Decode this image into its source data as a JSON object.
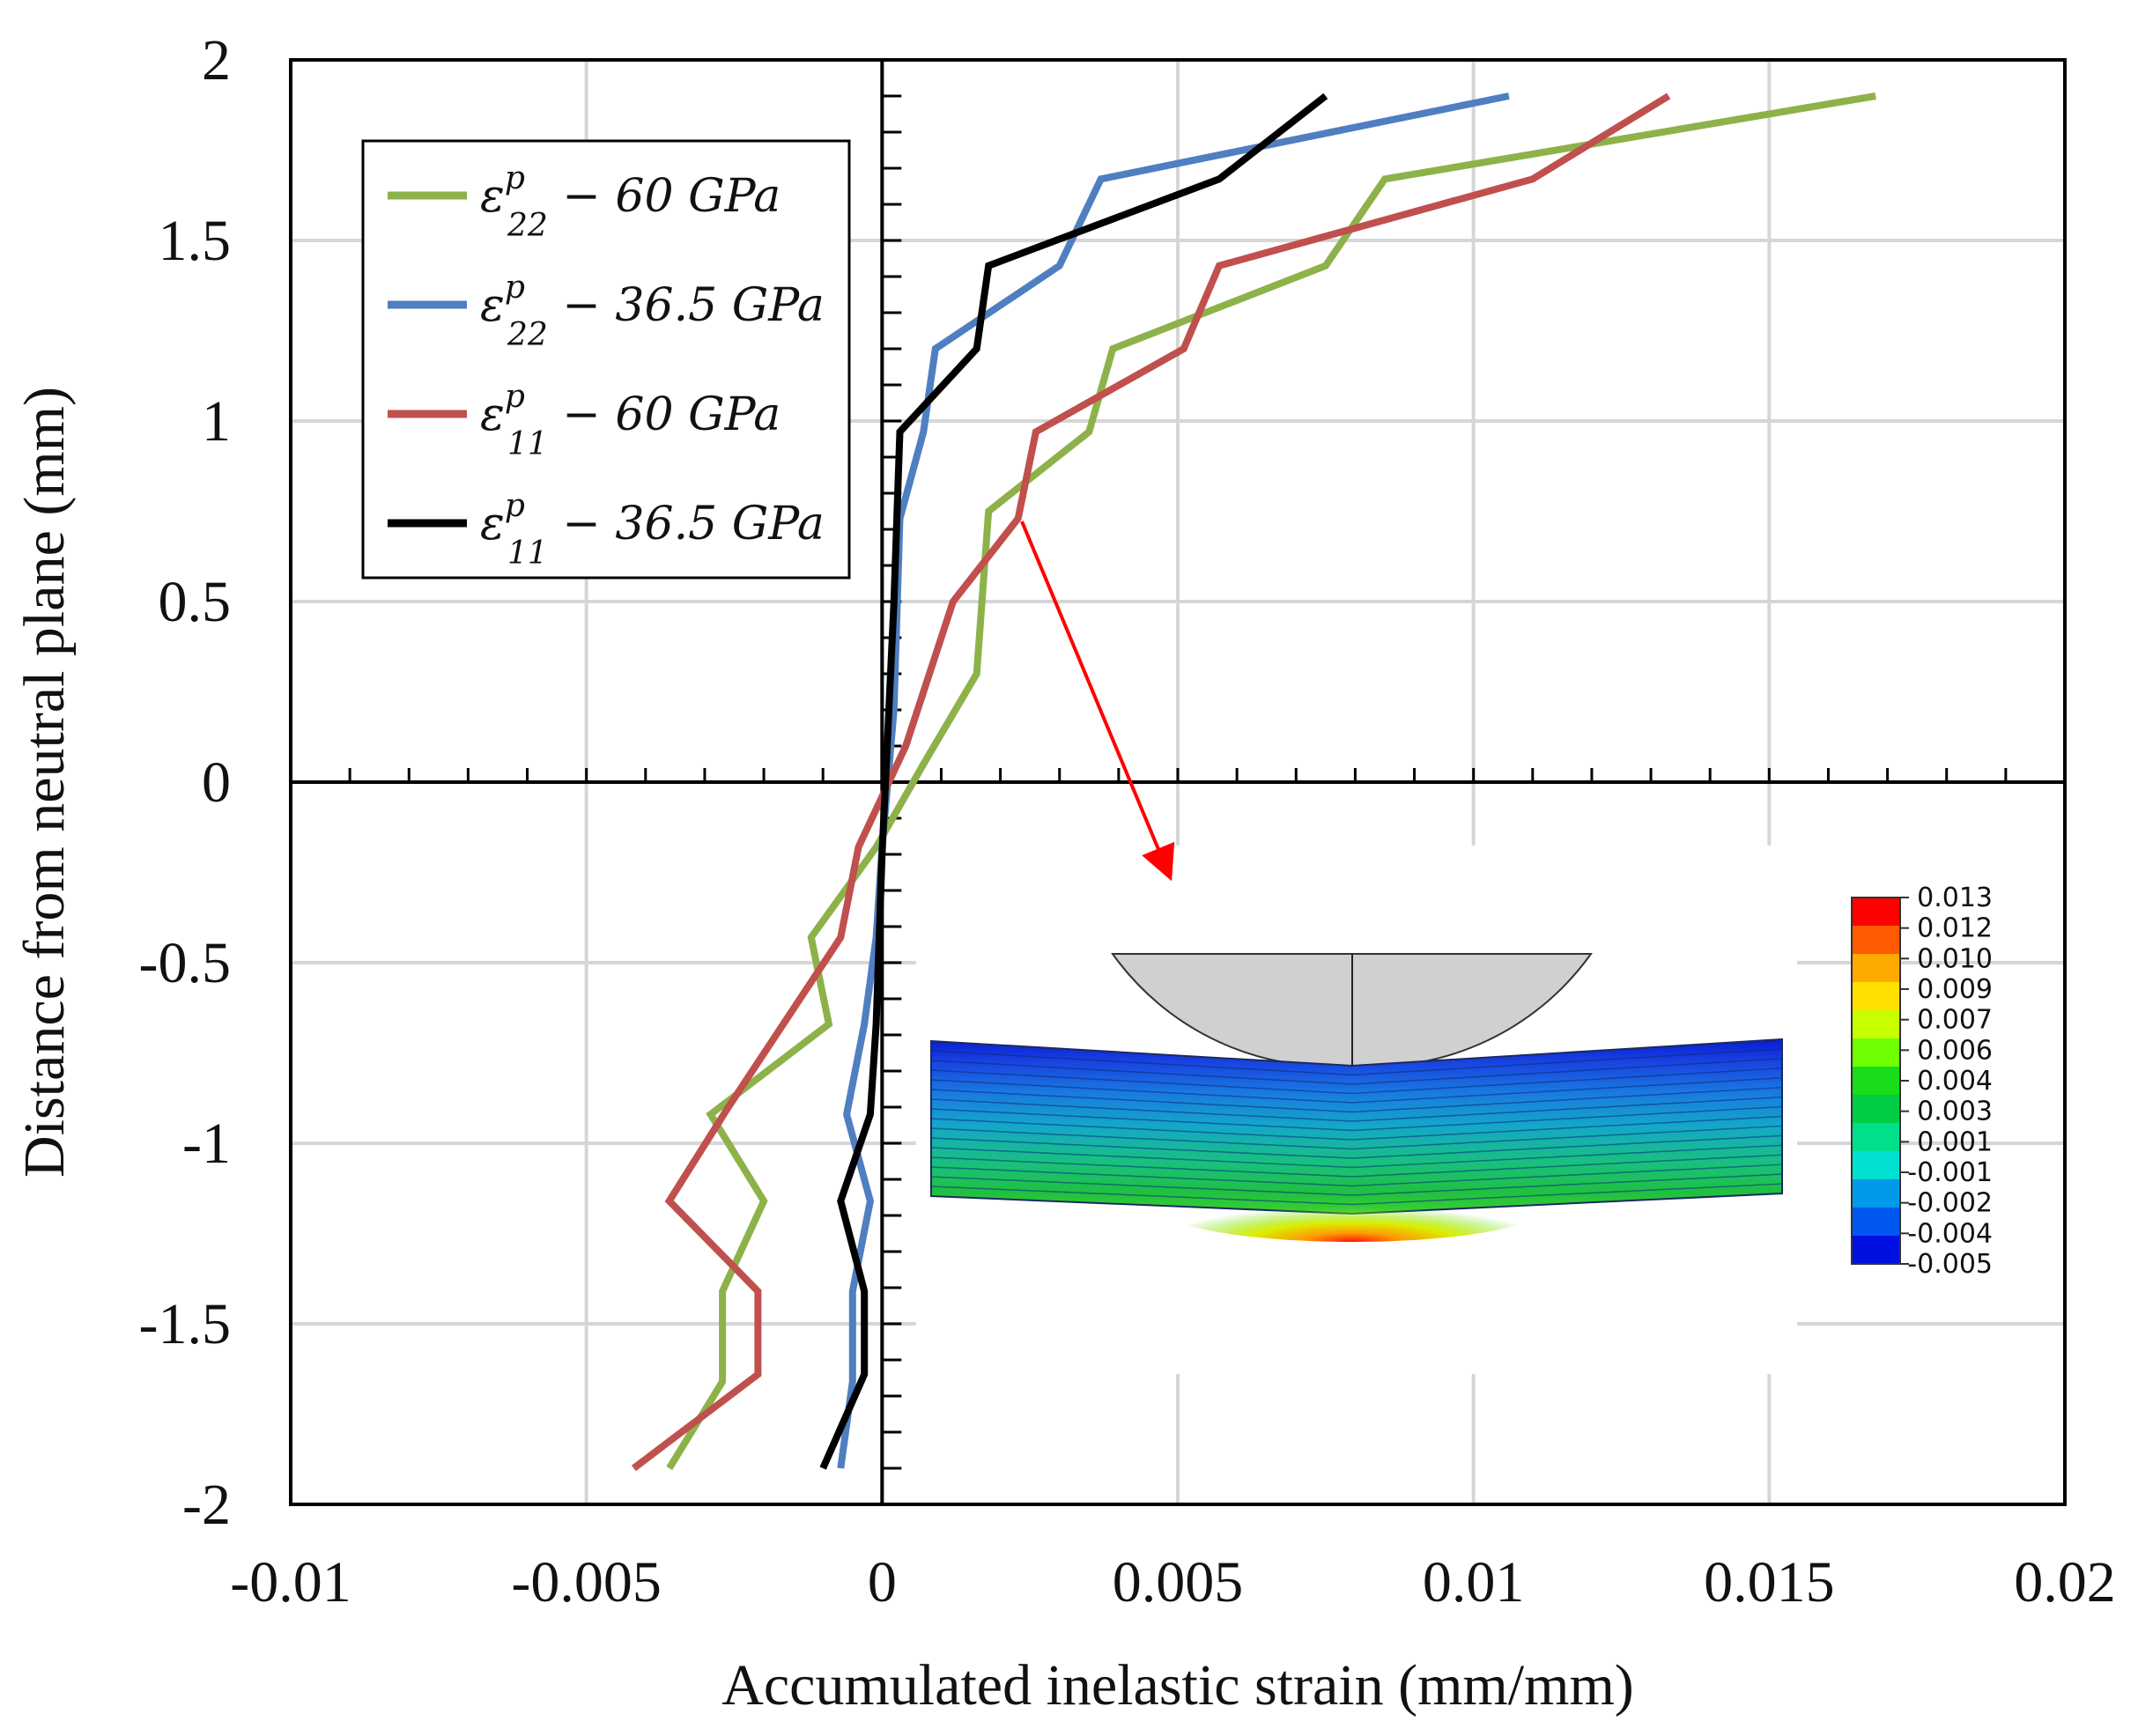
{
  "chart_data": {
    "type": "line",
    "xlabel": "Accumulated inelastic strain (mm/mm)",
    "ylabel": "Distance  from neutral plane (mm)",
    "xlim": [
      -0.01,
      0.02
    ],
    "ylim": [
      -2,
      2
    ],
    "x_ticks": [
      "-0.01",
      "-0.005",
      "0",
      "0.005",
      "0.01",
      "0.015",
      "0.02"
    ],
    "y_ticks": [
      "2",
      "1.5",
      "1",
      "0.5",
      "0",
      "-0.5",
      "-1",
      "-1.5",
      "-2"
    ],
    "grid": true,
    "legend_position": "top-left",
    "series": [
      {
        "name": "ε22p − 60 GPa",
        "symbol": "ε",
        "sub": "22",
        "sup": "p",
        "rest": " − 60 GPa",
        "color": "#8db24a",
        "points": [
          [
            -0.0036,
            -1.9
          ],
          [
            -0.0027,
            -1.66
          ],
          [
            -0.0027,
            -1.41
          ],
          [
            -0.002,
            -1.16
          ],
          [
            -0.0029,
            -0.92
          ],
          [
            -0.0009,
            -0.67
          ],
          [
            -0.0012,
            -0.43
          ],
          [
            -0.0001,
            -0.18
          ],
          [
            0.0007,
            0.05
          ],
          [
            0.0016,
            0.3
          ],
          [
            0.0018,
            0.75
          ],
          [
            0.0035,
            0.97
          ],
          [
            0.0039,
            1.2
          ],
          [
            0.0075,
            1.43
          ],
          [
            0.0085,
            1.67
          ],
          [
            0.0168,
            1.9
          ]
        ]
      },
      {
        "name": "ε22p − 36.5 GPa",
        "symbol": "ε",
        "sub": "22",
        "sup": "p",
        "rest": " − 36.5 GPa",
        "color": "#4f7fc0",
        "points": [
          [
            -0.0007,
            -1.9
          ],
          [
            -0.0005,
            -1.66
          ],
          [
            -0.0005,
            -1.41
          ],
          [
            -0.0002,
            -1.16
          ],
          [
            -0.0006,
            -0.92
          ],
          [
            -0.0003,
            -0.67
          ],
          [
            -0.0001,
            -0.43
          ],
          [
            0.0,
            -0.18
          ],
          [
            0.0002,
            0.2
          ],
          [
            0.0003,
            0.73
          ],
          [
            0.0007,
            0.97
          ],
          [
            0.0009,
            1.2
          ],
          [
            0.003,
            1.43
          ],
          [
            0.0037,
            1.67
          ],
          [
            0.0106,
            1.9
          ]
        ]
      },
      {
        "name": "ε11p − 60 GPa",
        "symbol": "ε",
        "sub": "11",
        "sup": "p",
        "rest": " − 60 GPa",
        "color": "#c0504d",
        "points": [
          [
            -0.0042,
            -1.9
          ],
          [
            -0.0021,
            -1.64
          ],
          [
            -0.0021,
            -1.41
          ],
          [
            -0.0036,
            -1.16
          ],
          [
            -0.0026,
            -0.9
          ],
          [
            -0.0007,
            -0.43
          ],
          [
            -0.0004,
            -0.18
          ],
          [
            0.0004,
            0.1
          ],
          [
            0.0012,
            0.5
          ],
          [
            0.0023,
            0.73
          ],
          [
            0.0026,
            0.97
          ],
          [
            0.0051,
            1.2
          ],
          [
            0.0057,
            1.43
          ],
          [
            0.011,
            1.67
          ],
          [
            0.0133,
            1.9
          ]
        ]
      },
      {
        "name": "ε11p − 36.5 GPa",
        "symbol": "ε",
        "sub": "11",
        "sup": "p",
        "rest": " − 36.5 GPa",
        "color": "#000000",
        "points": [
          [
            -0.001,
            -1.9
          ],
          [
            -0.0003,
            -1.64
          ],
          [
            -0.0003,
            -1.41
          ],
          [
            -0.0007,
            -1.16
          ],
          [
            -0.0002,
            -0.92
          ],
          [
            -0.0001,
            -0.67
          ],
          [
            0.0,
            -0.2
          ],
          [
            0.0002,
            0.5
          ],
          [
            0.0003,
            0.97
          ],
          [
            0.0016,
            1.2
          ],
          [
            0.0018,
            1.43
          ],
          [
            0.0057,
            1.67
          ],
          [
            0.0075,
            1.9
          ]
        ]
      }
    ]
  },
  "inset": {
    "colorbar_labels": [
      "0.013",
      "0.012",
      "0.010",
      "0.009",
      "0.007",
      "0.006",
      "0.004",
      "0.003",
      "0.001",
      "-0.001",
      "-0.002",
      "-0.004",
      "-0.005"
    ],
    "colorbar_colors": [
      "#ff0000",
      "#ff5a00",
      "#ffaa00",
      "#ffe000",
      "#c8ff00",
      "#6eff00",
      "#1adc1a",
      "#00cc44",
      "#00e08a",
      "#00e0d0",
      "#009ae8",
      "#0058f0",
      "#0010e0"
    ]
  }
}
